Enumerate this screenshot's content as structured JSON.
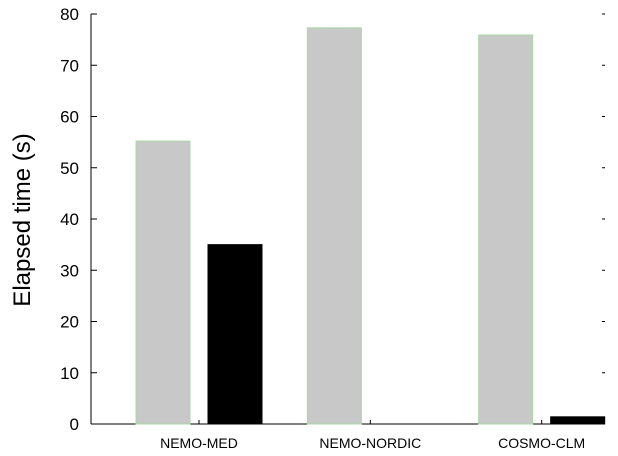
{
  "chart_data": {
    "type": "bar",
    "title": "",
    "xlabel": "",
    "ylabel": "Elapsed time (s)",
    "ylim": [
      0,
      80
    ],
    "yticks": [
      0,
      10,
      20,
      30,
      40,
      50,
      60,
      70,
      80
    ],
    "categories": [
      "NEMO-MED",
      "NEMO-NORDIC",
      "COSMO-CLM"
    ],
    "series": [
      {
        "values": [
          55.2,
          77.3,
          75.9
        ],
        "color": "#c8c8c8",
        "edge_color": "#a8d8a8"
      },
      {
        "values": [
          35.0,
          0,
          1.4
        ],
        "color": "#000000",
        "edge_color": "#000000"
      }
    ],
    "grid": false,
    "legend": "none"
  }
}
